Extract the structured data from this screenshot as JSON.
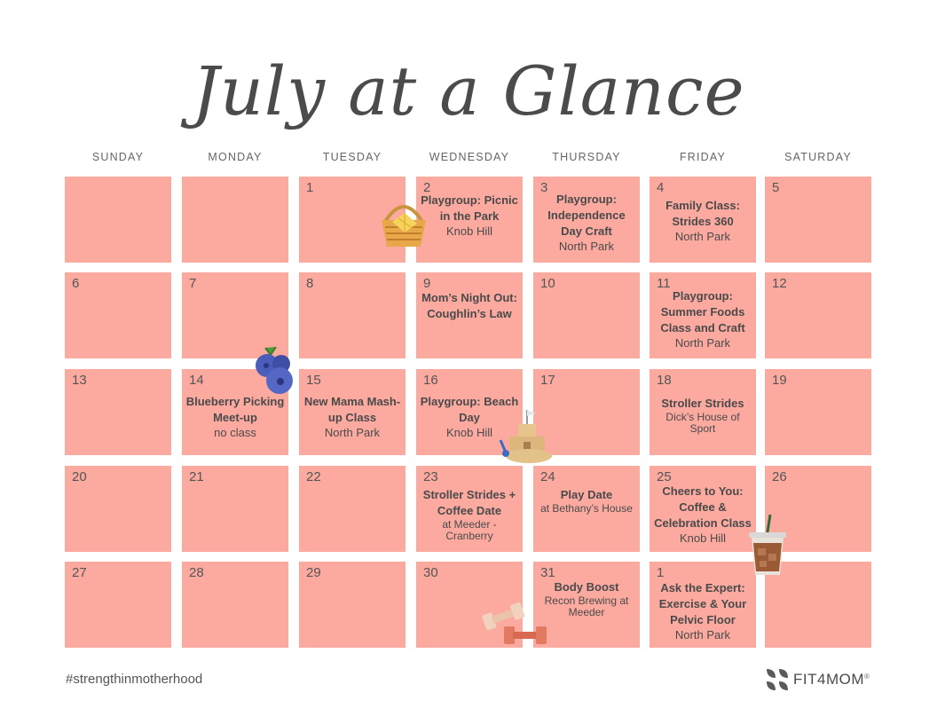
{
  "title": "July at a Glance",
  "day_headers": [
    "SUNDAY",
    "MONDAY",
    "TUESDAY",
    "WEDNESDAY",
    "THURSDAY",
    "FRIDAY",
    "SATURDAY"
  ],
  "weeks": [
    [
      {
        "num": "",
        "event": null
      },
      {
        "num": "",
        "event": null
      },
      {
        "num": "1",
        "event": null
      },
      {
        "num": "2",
        "event": {
          "title": "Playgroup: Picnic in the Park",
          "location": "Knob Hill"
        }
      },
      {
        "num": "3",
        "event": {
          "title": "Playgroup: Independence Day Craft",
          "location": "North Park"
        }
      },
      {
        "num": "4",
        "event": {
          "title": "Family Class: Strides 360",
          "location": "North Park"
        }
      },
      {
        "num": "5",
        "event": null
      }
    ],
    [
      {
        "num": "6",
        "event": null
      },
      {
        "num": "7",
        "event": null
      },
      {
        "num": "8",
        "event": null
      },
      {
        "num": "9",
        "event": {
          "title": "Mom’s Night Out: Coughlin’s Law",
          "location": ""
        }
      },
      {
        "num": "10",
        "event": null
      },
      {
        "num": "11",
        "event": {
          "title": "Playgroup: Summer Foods Class and Craft",
          "location": "North Park"
        }
      },
      {
        "num": "12",
        "event": null
      }
    ],
    [
      {
        "num": "13",
        "event": null
      },
      {
        "num": "14",
        "event": {
          "title": "Blueberry Picking Meet-up",
          "location": "no class"
        }
      },
      {
        "num": "15",
        "event": {
          "title": "New Mama Mash-up Class",
          "location": "North Park"
        }
      },
      {
        "num": "16",
        "event": {
          "title": "Playgroup: Beach Day",
          "location": "Knob Hill"
        }
      },
      {
        "num": "17",
        "event": null
      },
      {
        "num": "18",
        "event": {
          "title": "Stroller Strides",
          "location": "Dick’s House of Sport"
        }
      },
      {
        "num": "19",
        "event": null
      }
    ],
    [
      {
        "num": "20",
        "event": null
      },
      {
        "num": "21",
        "event": null
      },
      {
        "num": "22",
        "event": null
      },
      {
        "num": "23",
        "event": {
          "title": "Stroller Strides + Coffee Date",
          "location": "at Meeder - Cranberry"
        }
      },
      {
        "num": "24",
        "event": {
          "title": "Play Date",
          "location": "at Bethany’s House"
        }
      },
      {
        "num": "25",
        "event": {
          "title": "Cheers to You: Coffee & Celebration Class",
          "location": "Knob Hill"
        }
      },
      {
        "num": "26",
        "event": null
      }
    ],
    [
      {
        "num": "27",
        "event": null
      },
      {
        "num": "28",
        "event": null
      },
      {
        "num": "29",
        "event": null
      },
      {
        "num": "30",
        "event": null
      },
      {
        "num": "31",
        "event": {
          "title": "Body Boost",
          "location": "Recon Brewing at Meeder"
        }
      },
      {
        "num": "1",
        "event": {
          "title": "Ask the Expert: Exercise & Your Pelvic Floor",
          "location": "North Park"
        }
      },
      {
        "num": "",
        "event": null
      }
    ]
  ],
  "footer": {
    "hashtag": "#strengthinmotherhood",
    "brand": "FIT4MOM",
    "trademark": "®"
  },
  "colors": {
    "cell": "#fcaaa0",
    "text": "#4a4a4a",
    "brand_icon": "#5b5b5b"
  },
  "decorations": [
    "picnic-basket-icon",
    "blueberries-icon",
    "sandcastle-icon",
    "iced-coffee-icon",
    "dumbbells-icon"
  ]
}
